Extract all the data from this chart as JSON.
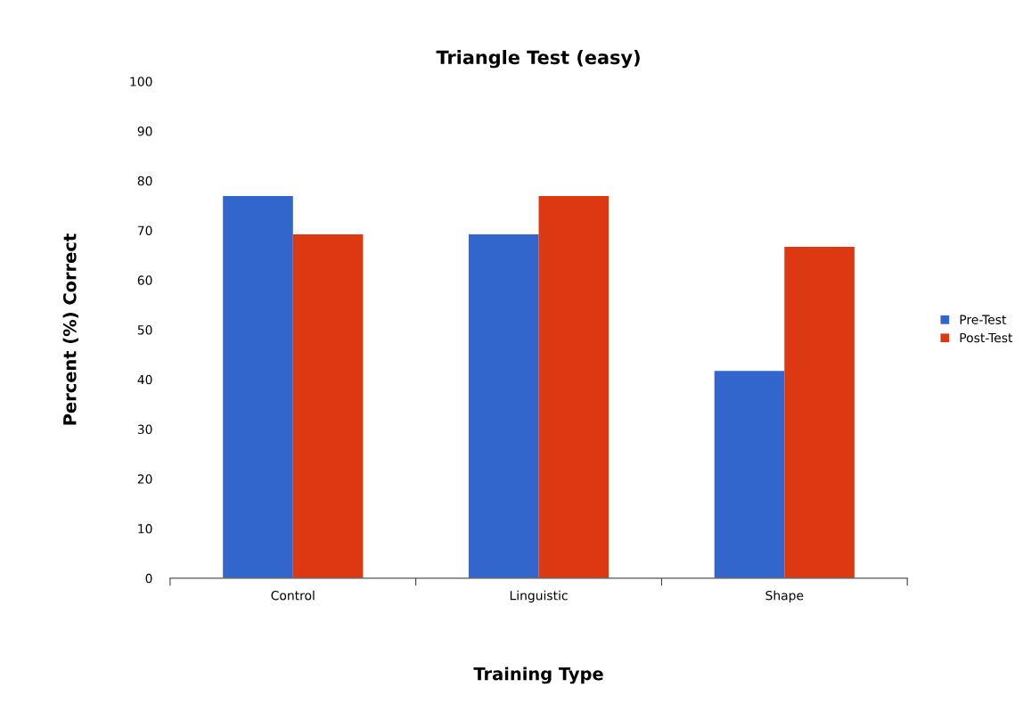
{
  "chart_data": {
    "type": "bar",
    "title": "Triangle Test (easy)",
    "xlabel": "Training Type",
    "ylabel": "Percent (%) Correct",
    "categories": [
      "Control",
      "Linguistic",
      "Shape"
    ],
    "series": [
      {
        "name": "Pre-Test",
        "color": "#3366cc",
        "values": [
          76.9,
          69.2,
          41.7
        ]
      },
      {
        "name": "Post-Test",
        "color": "#dc3912",
        "values": [
          69.2,
          76.9,
          66.7
        ]
      }
    ],
    "ylim": [
      0,
      100
    ],
    "yticks": [
      0,
      10,
      20,
      30,
      40,
      50,
      60,
      70,
      80,
      90,
      100
    ],
    "grid": false,
    "legend": "right"
  }
}
